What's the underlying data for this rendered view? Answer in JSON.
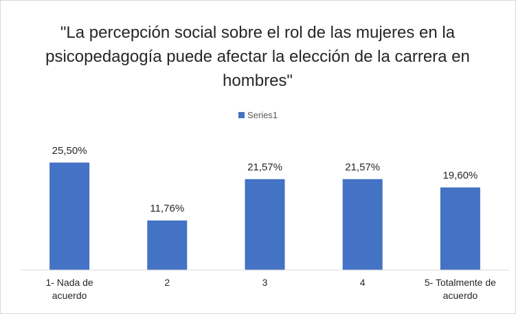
{
  "chart_data": {
    "type": "bar",
    "title": "\"La percepción social sobre el rol de las mujeres en la psicopedagogía puede afectar la elección de la carrera en hombres\"",
    "categories": [
      "1- Nada de acuerdo",
      "2",
      "3",
      "4",
      "5- Totalmente de acuerdo"
    ],
    "series": [
      {
        "name": "Series1",
        "color": "#4472c4",
        "values": [
          25.5,
          11.76,
          21.57,
          21.57,
          19.6
        ],
        "value_labels": [
          "25,50%",
          "11,76%",
          "21,57%",
          "21,57%",
          "19,60%"
        ]
      }
    ],
    "ylim": [
      0,
      30
    ]
  }
}
